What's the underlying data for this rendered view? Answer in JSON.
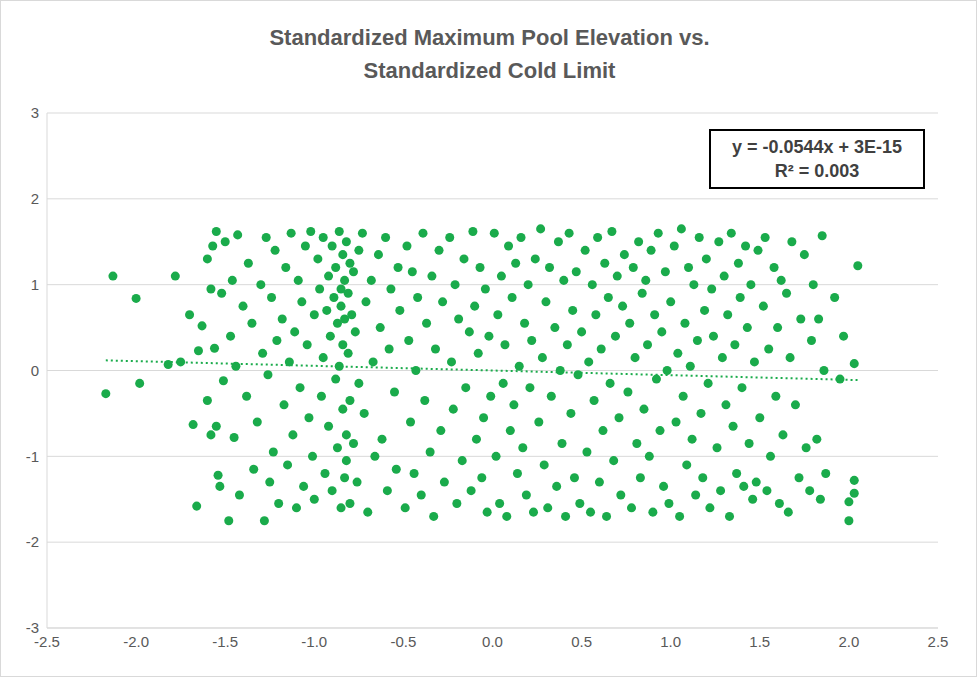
{
  "chart_data": {
    "type": "scatter",
    "title": "Standardized Maximum Pool Elevation vs. Standardized Cold Limit",
    "color": "#1aab4b",
    "grid": true,
    "marker": "circle",
    "x": [
      -2.17,
      -2.13,
      -2.0,
      -1.98,
      2.05,
      2.03,
      2.03,
      2.03,
      2.0,
      2.0,
      -1.78,
      -1.75,
      -1.82,
      -1.7,
      -1.68,
      -1.66,
      -1.65,
      -1.63,
      -1.6,
      -1.58,
      -1.57,
      -1.56,
      -1.55,
      -1.54,
      -1.53,
      -1.52,
      -1.51,
      -1.5,
      -1.6,
      -1.58,
      -1.55,
      -1.48,
      -1.47,
      -1.46,
      -1.45,
      -1.44,
      -1.43,
      -1.42,
      -1.4,
      -1.38,
      -1.37,
      -1.35,
      -1.34,
      -1.32,
      -1.3,
      -1.29,
      -1.28,
      -1.27,
      -1.26,
      -1.25,
      -1.24,
      -1.23,
      -1.22,
      -1.21,
      -1.2,
      -1.18,
      -1.17,
      -1.16,
      -1.15,
      -1.14,
      -1.13,
      -1.12,
      -1.11,
      -1.1,
      -1.09,
      -1.08,
      -1.07,
      -1.06,
      -1.05,
      -1.04,
      -1.03,
      -1.02,
      -1.01,
      -1.0,
      -1.0,
      -0.98,
      -0.97,
      -0.96,
      -0.95,
      -0.95,
      -0.94,
      -0.93,
      -0.92,
      -0.92,
      -0.91,
      -0.9,
      -0.9,
      -0.89,
      -0.88,
      -0.88,
      -0.87,
      -0.87,
      -0.86,
      -0.86,
      -0.85,
      -0.85,
      -0.85,
      -0.84,
      -0.84,
      -0.84,
      -0.83,
      -0.83,
      -0.83,
      -0.82,
      -0.82,
      -0.82,
      -0.81,
      -0.81,
      -0.8,
      -0.8,
      -0.8,
      -0.79,
      -0.78,
      -0.78,
      -0.77,
      -0.76,
      -0.75,
      -0.75,
      -0.73,
      -0.72,
      -0.71,
      -0.7,
      -0.68,
      -0.67,
      -0.66,
      -0.64,
      -0.63,
      -0.62,
      -0.6,
      -0.59,
      -0.58,
      -0.57,
      -0.55,
      -0.54,
      -0.53,
      -0.52,
      -0.49,
      -0.48,
      -0.47,
      -0.46,
      -0.45,
      -0.44,
      -0.43,
      -0.42,
      -0.4,
      -0.39,
      -0.38,
      -0.37,
      -0.35,
      -0.34,
      -0.33,
      -0.32,
      -0.3,
      -0.29,
      -0.28,
      -0.27,
      -0.24,
      -0.23,
      -0.22,
      -0.21,
      -0.2,
      -0.19,
      -0.17,
      -0.16,
      -0.15,
      -0.13,
      -0.12,
      -0.11,
      -0.1,
      -0.09,
      -0.08,
      -0.07,
      -0.06,
      -0.05,
      -0.04,
      -0.03,
      -0.02,
      -0.01,
      0.01,
      0.02,
      0.03,
      0.04,
      0.05,
      0.06,
      0.07,
      0.08,
      0.09,
      0.1,
      0.11,
      0.12,
      0.13,
      0.14,
      0.15,
      0.16,
      0.17,
      0.18,
      0.19,
      0.2,
      0.21,
      0.22,
      0.23,
      0.24,
      0.26,
      0.27,
      0.28,
      0.29,
      0.3,
      0.31,
      0.32,
      0.33,
      0.35,
      0.36,
      0.37,
      0.38,
      0.39,
      0.4,
      0.41,
      0.42,
      0.43,
      0.44,
      0.45,
      0.46,
      0.47,
      0.48,
      0.49,
      0.5,
      0.52,
      0.53,
      0.54,
      0.55,
      0.56,
      0.57,
      0.58,
      0.59,
      0.6,
      0.61,
      0.62,
      0.63,
      0.64,
      0.65,
      0.66,
      0.67,
      0.68,
      0.69,
      0.7,
      0.71,
      0.72,
      0.73,
      0.74,
      0.76,
      0.77,
      0.78,
      0.79,
      0.8,
      0.81,
      0.82,
      0.83,
      0.84,
      0.85,
      0.86,
      0.87,
      0.88,
      0.89,
      0.9,
      0.91,
      0.92,
      0.93,
      0.94,
      0.95,
      0.96,
      0.97,
      0.98,
      0.99,
      1.0,
      1.02,
      1.03,
      1.04,
      1.05,
      1.06,
      1.07,
      1.08,
      1.09,
      1.1,
      1.11,
      1.12,
      1.13,
      1.14,
      1.15,
      1.16,
      1.17,
      1.18,
      1.19,
      1.2,
      1.21,
      1.22,
      1.23,
      1.24,
      1.26,
      1.27,
      1.28,
      1.29,
      1.3,
      1.31,
      1.32,
      1.33,
      1.34,
      1.35,
      1.36,
      1.37,
      1.38,
      1.39,
      1.4,
      1.41,
      1.42,
      1.43,
      1.44,
      1.45,
      1.46,
      1.47,
      1.48,
      1.49,
      1.5,
      1.52,
      1.53,
      1.54,
      1.55,
      1.56,
      1.58,
      1.59,
      1.6,
      1.61,
      1.62,
      1.63,
      1.65,
      1.66,
      1.67,
      1.68,
      1.7,
      1.72,
      1.73,
      1.75,
      1.76,
      1.78,
      1.79,
      1.8,
      1.82,
      1.83,
      1.84,
      1.85,
      1.86,
      1.87,
      1.92,
      1.95,
      1.97
    ],
    "values": [
      -0.27,
      1.1,
      0.84,
      -0.15,
      1.22,
      0.08,
      -1.28,
      -1.43,
      -1.53,
      -1.75,
      1.1,
      0.1,
      0.07,
      0.65,
      -0.63,
      -1.58,
      0.23,
      0.52,
      1.3,
      -0.75,
      1.45,
      0.26,
      1.62,
      -1.22,
      -1.35,
      0.9,
      -0.12,
      1.5,
      -0.35,
      0.95,
      -0.65,
      -1.75,
      0.4,
      1.05,
      -0.78,
      0.05,
      1.58,
      -1.45,
      0.75,
      -0.3,
      1.25,
      0.55,
      -1.15,
      -0.6,
      1.0,
      0.2,
      -1.75,
      1.55,
      -0.05,
      -1.3,
      0.85,
      -0.95,
      1.4,
      0.35,
      -1.55,
      0.6,
      -0.4,
      1.2,
      -1.1,
      0.1,
      1.6,
      -0.75,
      0.45,
      -1.6,
      1.05,
      -0.2,
      0.8,
      -1.35,
      1.45,
      0.3,
      -0.55,
      1.62,
      -1.0,
      0.65,
      -1.5,
      1.3,
      0.95,
      -0.3,
      1.55,
      0.15,
      -1.2,
      0.7,
      1.1,
      -0.65,
      0.4,
      1.45,
      -1.4,
      0.85,
      -0.1,
      1.2,
      0.55,
      -0.9,
      1.62,
      0.05,
      0.95,
      -1.6,
      0.75,
      1.35,
      -0.45,
      0.3,
      1.05,
      -1.25,
      0.6,
      1.5,
      -0.75,
      -1.05,
      0.9,
      0.2,
      1.25,
      -0.35,
      -1.55,
      0.65,
      1.15,
      -0.85,
      0.45,
      -1.3,
      1.4,
      -0.15,
      1.6,
      -0.5,
      0.8,
      -1.65,
      1.05,
      0.1,
      -1.0,
      1.35,
      0.5,
      -0.8,
      1.55,
      -1.4,
      0.25,
      0.95,
      -0.25,
      -1.15,
      1.2,
      0.7,
      -1.6,
      1.45,
      0.35,
      -0.6,
      1.15,
      -1.2,
      0.0,
      0.85,
      -1.45,
      1.6,
      -0.35,
      0.55,
      -0.95,
      1.1,
      -1.7,
      0.25,
      1.4,
      -0.7,
      0.8,
      -1.3,
      1.55,
      0.1,
      -0.45,
      1.0,
      -1.55,
      0.6,
      -1.05,
      1.3,
      -0.2,
      0.45,
      -1.4,
      1.62,
      0.75,
      -0.8,
      0.2,
      1.2,
      -1.25,
      -0.55,
      0.95,
      -1.65,
      0.4,
      -0.3,
      1.6,
      -1.0,
      0.65,
      -1.55,
      1.1,
      -0.15,
      0.3,
      -1.7,
      1.45,
      -0.7,
      0.85,
      -0.4,
      1.25,
      -1.2,
      0.05,
      1.55,
      -0.9,
      0.55,
      -1.45,
      1.0,
      -0.2,
      0.35,
      -1.65,
      1.3,
      -0.6,
      1.65,
      0.15,
      -1.1,
      0.8,
      -1.6,
      1.2,
      -0.3,
      0.5,
      -1.35,
      1.5,
      0.0,
      -0.85,
      1.05,
      -1.7,
      0.3,
      1.6,
      -0.5,
      0.7,
      -1.25,
      1.15,
      -0.05,
      -1.55,
      0.45,
      1.4,
      -0.95,
      0.1,
      -1.65,
      1.0,
      -0.35,
      0.65,
      1.55,
      -1.3,
      0.25,
      -0.7,
      1.25,
      -1.7,
      0.85,
      -0.15,
      1.62,
      -1.05,
      0.4,
      1.1,
      -0.55,
      -1.45,
      0.75,
      1.35,
      -0.25,
      0.55,
      -1.6,
      1.2,
      0.15,
      -0.85,
      1.5,
      -1.25,
      0.9,
      -0.45,
      1.05,
      0.3,
      -1.0,
      1.4,
      -1.65,
      0.65,
      -0.1,
      1.6,
      -0.7,
      0.45,
      -1.35,
      1.15,
      0.0,
      -1.55,
      0.8,
      1.45,
      -0.6,
      0.2,
      -1.7,
      1.65,
      -0.3,
      0.55,
      -1.1,
      1.2,
      0.05,
      -0.8,
      1.0,
      -1.45,
      0.35,
      1.55,
      -0.5,
      -1.25,
      0.7,
      1.3,
      -0.15,
      -1.6,
      0.95,
      0.4,
      -0.9,
      1.5,
      -1.4,
      0.15,
      1.1,
      -0.4,
      0.65,
      -1.7,
      1.6,
      -0.65,
      0.3,
      -1.2,
      1.25,
      0.85,
      -0.2,
      -1.35,
      1.45,
      0.5,
      -0.85,
      1.0,
      -1.5,
      0.1,
      -1.3,
      1.4,
      -0.55,
      0.75,
      1.55,
      -1.4,
      0.25,
      -1.0,
      1.2,
      -0.3,
      0.5,
      -1.55,
      1.05,
      -0.75,
      0.9,
      -1.65,
      0.15,
      1.5,
      -0.4,
      -1.25,
      0.6,
      1.35,
      -0.9,
      -1.4,
      0.35,
      1.0,
      -0.8,
      0.6,
      -1.5,
      1.57,
      0.0,
      -1.2,
      0.85,
      -0.1,
      0.4
    ],
    "xlim": [
      -2.5,
      2.5
    ],
    "xticks": [
      -2.5,
      {
        "value": -2,
        "label": "-2.0"
      },
      -1.5,
      {
        "value": -1,
        "label": "-1.0"
      },
      -0.5,
      {
        "value": 0,
        "label": "0.0"
      },
      0.5,
      {
        "value": 1,
        "label": "1.0"
      },
      1.5,
      {
        "value": 2,
        "label": "2.0"
      },
      2.5
    ],
    "ylim": [
      -3,
      3
    ],
    "yticks": [
      -3,
      -2,
      -1,
      0,
      1,
      2,
      3
    ],
    "trendline": {
      "slope": -0.0544,
      "intercept": 3e-15,
      "x": [
        -2.17,
        2.05
      ],
      "line_style": "dotted"
    },
    "annotations": [
      "y = -0.0544x + 3E-15",
      "R² = 0.003"
    ]
  }
}
